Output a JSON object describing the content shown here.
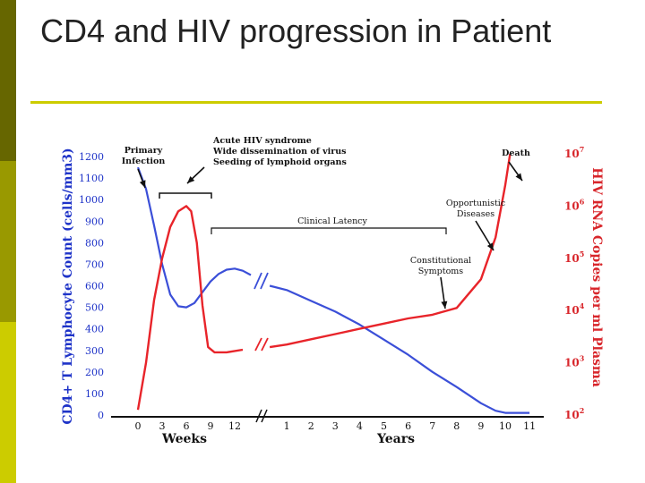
{
  "slide": {
    "title": "CD4 and HIV progression in Patient",
    "accent_color": "#999900",
    "rule_color": "#CCCC00"
  },
  "chart_data": {
    "type": "line",
    "title": "",
    "y_left_label": "CD4+ T Lymphocyte Count (cells/mm3)",
    "y_right_label": "HIV RNA Copies per ml Plasma",
    "x_weeks_label": "Weeks",
    "x_years_label": "Years",
    "weeks_ticks": [
      "0",
      "3",
      "6",
      "9",
      "12"
    ],
    "years_ticks": [
      "1",
      "2",
      "3",
      "4",
      "5",
      "6",
      "7",
      "8",
      "9",
      "10",
      "11"
    ],
    "y_left_ticks": [
      0,
      100,
      200,
      300,
      400,
      500,
      600,
      700,
      800,
      900,
      1000,
      1100,
      1200
    ],
    "y_left_range": [
      0,
      1200
    ],
    "y_right_ticks": [
      {
        "base": "10",
        "exp": "2"
      },
      {
        "base": "10",
        "exp": "3"
      },
      {
        "base": "10",
        "exp": "4"
      },
      {
        "base": "10",
        "exp": "5"
      },
      {
        "base": "10",
        "exp": "6"
      },
      {
        "base": "10",
        "exp": "7"
      }
    ],
    "y_right_log_range": [
      2,
      7
    ],
    "series": [
      {
        "color": "#3B4FD8",
        "points_weeks": [
          [
            0,
            1150
          ],
          [
            1,
            1050
          ],
          [
            2,
            880
          ],
          [
            3,
            700
          ],
          [
            4,
            560
          ],
          [
            5,
            505
          ],
          [
            6,
            500
          ],
          [
            7,
            520
          ],
          [
            8,
            570
          ],
          [
            9,
            620
          ],
          [
            10,
            655
          ],
          [
            11,
            675
          ],
          [
            12,
            680
          ],
          [
            13,
            670
          ],
          [
            14,
            650
          ]
        ],
        "points_years": [
          [
            0.3,
            600
          ],
          [
            1,
            580
          ],
          [
            2,
            530
          ],
          [
            3,
            480
          ],
          [
            4,
            420
          ],
          [
            5,
            350
          ],
          [
            6,
            280
          ],
          [
            7,
            200
          ],
          [
            8,
            130
          ],
          [
            9,
            55
          ],
          [
            9.6,
            20
          ],
          [
            10,
            10
          ],
          [
            11,
            10
          ]
        ]
      },
      {
        "color": "#E8242A",
        "points_weeks": [
          [
            0,
            2.1
          ],
          [
            1,
            3.0
          ],
          [
            2,
            4.2
          ],
          [
            3,
            5.0
          ],
          [
            4,
            5.6
          ],
          [
            5,
            5.9
          ],
          [
            6,
            6.0
          ],
          [
            6.6,
            5.9
          ],
          [
            7.3,
            5.3
          ],
          [
            8,
            4.1
          ],
          [
            8.7,
            3.3
          ],
          [
            9.5,
            3.2
          ],
          [
            11,
            3.2
          ],
          [
            13,
            3.25
          ]
        ],
        "points_years": [
          [
            0.3,
            3.3
          ],
          [
            1,
            3.35
          ],
          [
            2,
            3.45
          ],
          [
            3,
            3.55
          ],
          [
            4,
            3.65
          ],
          [
            5,
            3.75
          ],
          [
            6,
            3.85
          ],
          [
            7,
            3.92
          ],
          [
            8,
            4.05
          ],
          [
            9,
            4.6
          ],
          [
            9.6,
            5.4
          ],
          [
            10,
            6.4
          ],
          [
            10.2,
            7.0
          ]
        ]
      }
    ],
    "annotations": {
      "primary_infection": [
        "Primary",
        "Infection"
      ],
      "acute": [
        "Acute HIV syndrome",
        "Wide dissemination of virus",
        "Seeding of lymphoid organs"
      ],
      "clinical_latency": "Clinical Latency",
      "death": "Death",
      "opportunistic": [
        "Opportunistic",
        "Diseases"
      ],
      "constitutional": [
        "Constitutional",
        "Symptoms"
      ]
    }
  }
}
